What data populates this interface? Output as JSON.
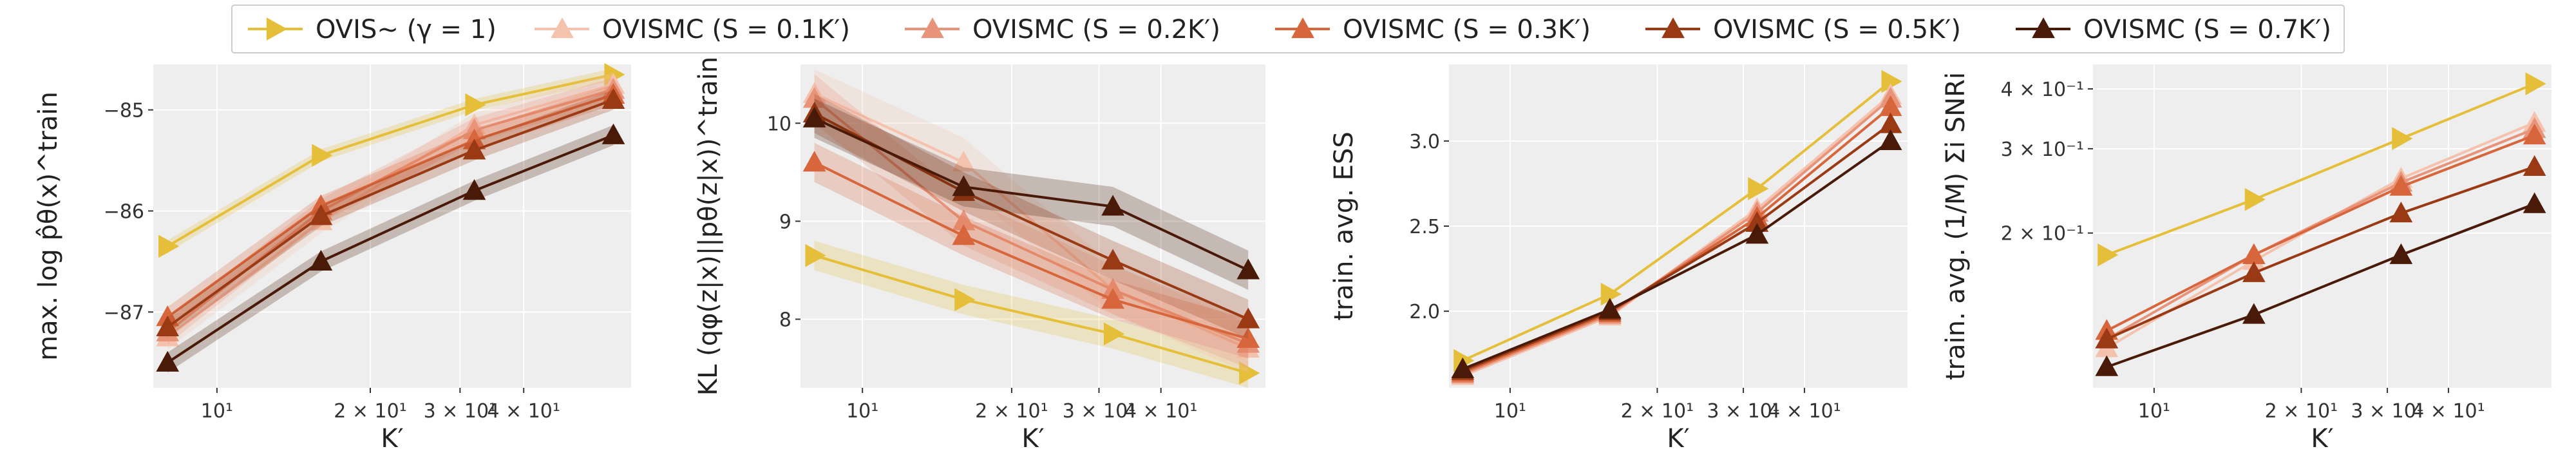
{
  "legend": {
    "entries": [
      {
        "label": "OVIS~ (γ = 1)",
        "color": "#e5bf3a",
        "marker": "right-triangle"
      },
      {
        "label": "OVISMC (S = 0.1K′)",
        "color": "#f5c2ae",
        "marker": "triangle"
      },
      {
        "label": "OVISMC (S = 0.2K′)",
        "color": "#e8947a",
        "marker": "triangle"
      },
      {
        "label": "OVISMC (S = 0.3K′)",
        "color": "#d8663c",
        "marker": "triangle"
      },
      {
        "label": "OVISMC (S = 0.5K′)",
        "color": "#9a3a14",
        "marker": "triangle"
      },
      {
        "label": "OVISMC (S = 0.7K′)",
        "color": "#4a1a08",
        "marker": "triangle"
      }
    ]
  },
  "chart_data": [
    {
      "type": "line",
      "xscale": "log",
      "yscale": "linear",
      "xlabel": "K′",
      "ylabel": "max. log p̂θ(x)^train",
      "xlim": [
        7.5,
        65
      ],
      "ylim": [
        -87.75,
        -84.55
      ],
      "xticks": [
        10,
        20,
        30,
        40
      ],
      "xticklabels": [
        "10¹",
        "2 × 10¹",
        "3 × 10¹",
        "4 × 10¹"
      ],
      "yticks": [
        -87,
        -86,
        -85
      ],
      "yticklabels": [
        "−87",
        "−86",
        "−85"
      ],
      "grid": true,
      "x": [
        8,
        16,
        32,
        60
      ],
      "series": [
        {
          "name": "OVIS~ (γ = 1)",
          "values": [
            -86.35,
            -85.45,
            -84.95,
            -84.65
          ],
          "band": 0.06
        },
        {
          "name": "OVISMC (S = 0.1K′)",
          "values": [
            -87.25,
            -86.1,
            -85.15,
            -84.75
          ],
          "band": 0.12
        },
        {
          "name": "OVISMC (S = 0.2K′)",
          "values": [
            -87.2,
            -86.0,
            -85.2,
            -84.8
          ],
          "band": 0.12
        },
        {
          "name": "OVISMC (S = 0.3K′)",
          "values": [
            -87.05,
            -85.95,
            -85.3,
            -84.85
          ],
          "band": 0.1
        },
        {
          "name": "OVISMC (S = 0.5K′)",
          "values": [
            -87.15,
            -86.05,
            -85.4,
            -84.9
          ],
          "band": 0.1
        },
        {
          "name": "OVISMC (S = 0.7K′)",
          "values": [
            -87.5,
            -86.5,
            -85.8,
            -85.25
          ],
          "band": 0.1
        }
      ]
    },
    {
      "type": "line",
      "xscale": "log",
      "yscale": "linear",
      "xlabel": "K′",
      "ylabel": "KL (qφ(z|x)||pθ(z|x))^train",
      "xlim": [
        7.5,
        65
      ],
      "ylim": [
        7.3,
        10.6
      ],
      "xticks": [
        10,
        20,
        30,
        40
      ],
      "xticklabels": [
        "10¹",
        "2 × 10¹",
        "3 × 10¹",
        "4 × 10¹"
      ],
      "yticks": [
        8,
        9,
        10
      ],
      "yticklabels": [
        "8",
        "9",
        "10"
      ],
      "grid": true,
      "x": [
        8,
        16,
        32,
        60
      ],
      "series": [
        {
          "name": "OVIS~ (γ = 1)",
          "values": [
            8.65,
            8.2,
            7.85,
            7.45
          ],
          "band": 0.15
        },
        {
          "name": "OVISMC (S = 0.1K′)",
          "values": [
            10.3,
            9.6,
            8.3,
            7.7
          ],
          "band": 0.25
        },
        {
          "name": "OVISMC (S = 0.2K′)",
          "values": [
            10.25,
            9.0,
            8.3,
            7.75
          ],
          "band": 0.25
        },
        {
          "name": "OVISMC (S = 0.3K′)",
          "values": [
            9.6,
            8.85,
            8.2,
            7.8
          ],
          "band": 0.2
        },
        {
          "name": "OVISMC (S = 0.5K′)",
          "values": [
            10.1,
            9.3,
            8.6,
            8.0
          ],
          "band": 0.2
        },
        {
          "name": "OVISMC (S = 0.7K′)",
          "values": [
            10.05,
            9.35,
            9.15,
            8.5
          ],
          "band": 0.2
        }
      ]
    },
    {
      "type": "line",
      "xscale": "log",
      "yscale": "linear",
      "xlabel": "K′",
      "ylabel": "train. avg. ESS",
      "xlim": [
        7.5,
        65
      ],
      "ylim": [
        1.55,
        3.45
      ],
      "xticks": [
        10,
        20,
        30,
        40
      ],
      "xticklabels": [
        "10¹",
        "2 × 10¹",
        "3 × 10¹",
        "4 × 10¹"
      ],
      "yticks": [
        2.0,
        2.5,
        3.0
      ],
      "yticklabels": [
        "2.0",
        "2.5",
        "3.0"
      ],
      "grid": true,
      "x": [
        8,
        16,
        32,
        60
      ],
      "series": [
        {
          "name": "OVIS~ (γ = 1)",
          "values": [
            1.71,
            2.1,
            2.72,
            3.35
          ],
          "band": 0.0
        },
        {
          "name": "OVISMC (S = 0.1K′)",
          "values": [
            1.62,
            1.97,
            2.6,
            3.27
          ],
          "band": 0.0
        },
        {
          "name": "OVISMC (S = 0.2K′)",
          "values": [
            1.63,
            1.98,
            2.58,
            3.25
          ],
          "band": 0.0
        },
        {
          "name": "OVISMC (S = 0.3K′)",
          "values": [
            1.64,
            1.99,
            2.55,
            3.2
          ],
          "band": 0.0
        },
        {
          "name": "OVISMC (S = 0.5K′)",
          "values": [
            1.65,
            2.0,
            2.52,
            3.1
          ],
          "band": 0.0
        },
        {
          "name": "OVISMC (S = 0.7K′)",
          "values": [
            1.66,
            2.01,
            2.45,
            3.0
          ],
          "band": 0.0
        }
      ]
    },
    {
      "type": "line",
      "xscale": "log",
      "yscale": "log",
      "xlabel": "K′",
      "ylabel": "train. avg. (1/M) Σi SNRi",
      "xlim": [
        7.5,
        65
      ],
      "ylim": [
        0.095,
        0.45
      ],
      "xticks": [
        10,
        20,
        30,
        40
      ],
      "xticklabels": [
        "10¹",
        "2 × 10¹",
        "3 × 10¹",
        "4 × 10¹"
      ],
      "yticks": [
        0.2,
        0.3,
        0.4
      ],
      "yticklabels": [
        "2 × 10⁻¹",
        "3 × 10⁻¹",
        "4 × 10⁻¹"
      ],
      "grid": true,
      "x": [
        8,
        16,
        32,
        60
      ],
      "series": [
        {
          "name": "OVIS~ (γ = 1)",
          "values": [
            0.18,
            0.235,
            0.315,
            0.41
          ],
          "band": 0.0
        },
        {
          "name": "OVISMC (S = 0.1K′)",
          "values": [
            0.115,
            0.175,
            0.26,
            0.34
          ],
          "band": 0.0
        },
        {
          "name": "OVISMC (S = 0.2K′)",
          "values": [
            0.12,
            0.18,
            0.255,
            0.33
          ],
          "band": 0.0
        },
        {
          "name": "OVISMC (S = 0.3K′)",
          "values": [
            0.125,
            0.18,
            0.25,
            0.32
          ],
          "band": 0.0
        },
        {
          "name": "OVISMC (S = 0.5K′)",
          "values": [
            0.12,
            0.165,
            0.22,
            0.275
          ],
          "band": 0.0
        },
        {
          "name": "OVISMC (S = 0.7K′)",
          "values": [
            0.105,
            0.135,
            0.18,
            0.23
          ],
          "band": 0.0
        }
      ]
    }
  ]
}
